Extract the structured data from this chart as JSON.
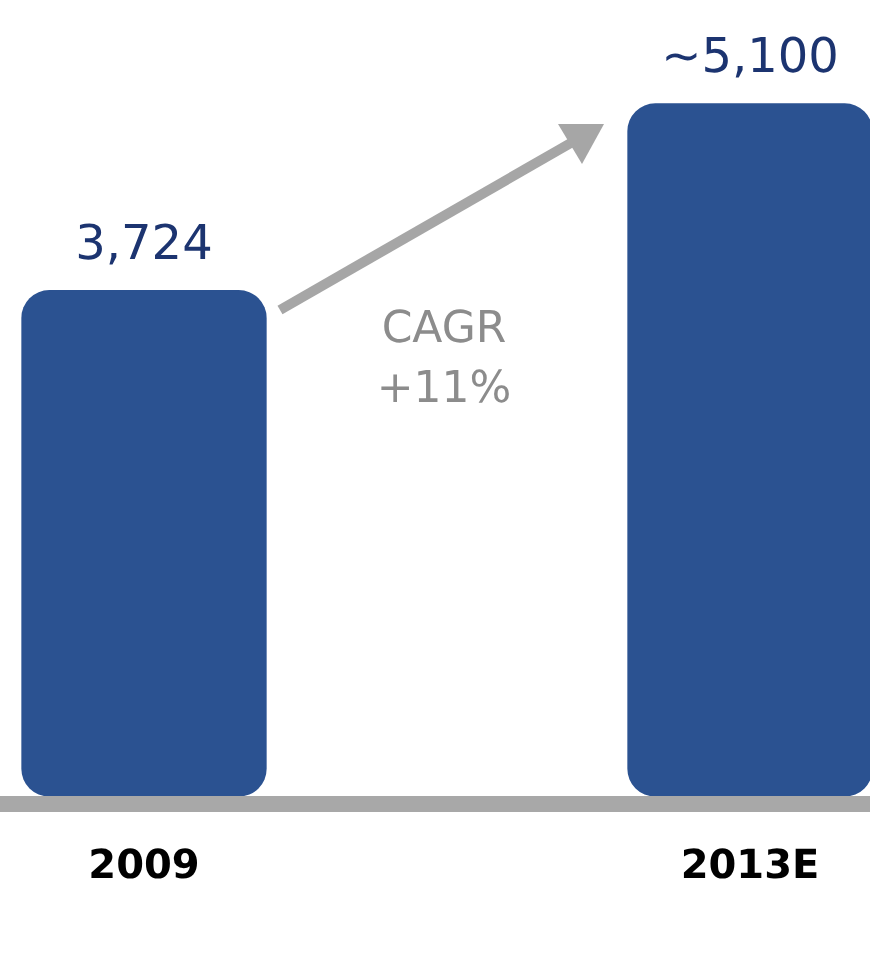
{
  "chart_data": {
    "type": "bar",
    "categories": [
      "2009",
      "2013E"
    ],
    "values": [
      3724,
      5100
    ],
    "color": "#2b5291",
    "value_labels": [
      "3,724",
      "~5,100"
    ],
    "annotations": [
      "CAGR +11%"
    ],
    "grid": false,
    "legend": false
  }
}
